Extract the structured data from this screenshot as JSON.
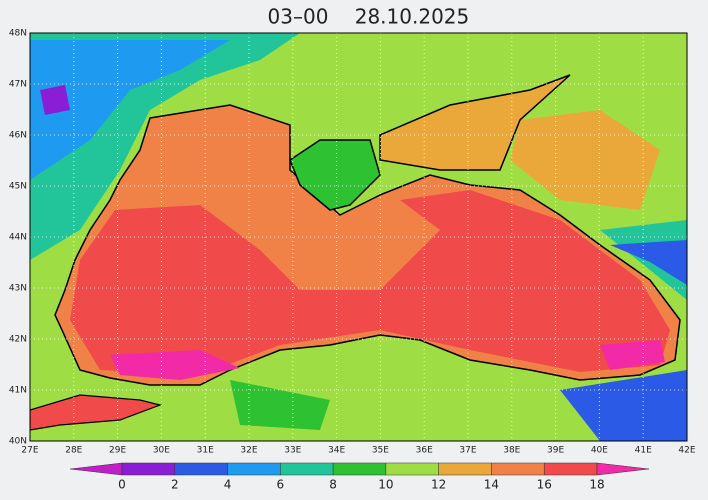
{
  "title": {
    "time": "03–00",
    "date": "28.10.2025"
  },
  "map": {
    "lat_labels": [
      "40N",
      "41N",
      "42N",
      "43N",
      "44N",
      "45N",
      "46N",
      "47N",
      "48N"
    ],
    "lon_labels": [
      "27E",
      "28E",
      "29E",
      "30E",
      "31E",
      "32E",
      "33E",
      "34E",
      "35E",
      "36E",
      "37E",
      "38E",
      "39E",
      "40E",
      "41E",
      "42E"
    ]
  },
  "colorbar": {
    "ticks": [
      0,
      2,
      4,
      6,
      8,
      10,
      12,
      14,
      16,
      18
    ],
    "colors": [
      "#c020c8",
      "#8a1ed6",
      "#2a5ae6",
      "#1e9af0",
      "#22c49a",
      "#2ec232",
      "#9ede44",
      "#eaa83a",
      "#f08248",
      "#f04a4a",
      "#f22aa8"
    ]
  }
}
